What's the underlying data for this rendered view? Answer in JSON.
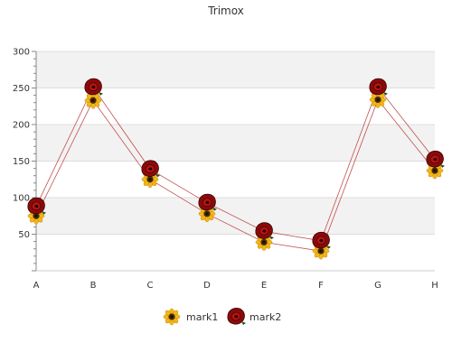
{
  "chart_data": {
    "type": "line",
    "title": "Trimox",
    "xlabel": "",
    "ylabel": "",
    "categories": [
      "A",
      "B",
      "C",
      "D",
      "E",
      "F",
      "G",
      "H"
    ],
    "ylim": [
      0,
      300
    ],
    "yticks": [
      50,
      100,
      150,
      200,
      250,
      300
    ],
    "grid": true,
    "legend": "bottom-center",
    "series": [
      {
        "name": "mark1",
        "values": [
          75,
          233,
          125,
          78,
          39,
          27,
          234,
          137
        ],
        "color": "#c0504d",
        "marker": "sunflower-icon"
      },
      {
        "name": "mark2",
        "values": [
          88,
          251,
          139,
          93,
          54,
          41,
          251,
          152
        ],
        "color": "#c0504d",
        "marker": "rose-icon"
      }
    ]
  }
}
